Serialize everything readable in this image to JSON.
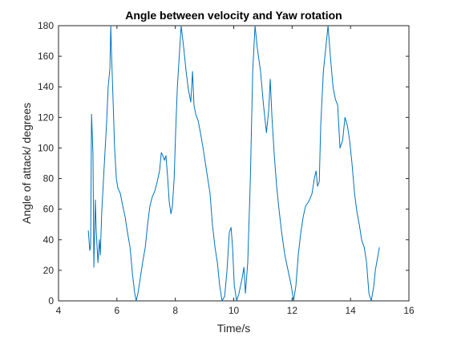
{
  "chart_data": {
    "type": "line",
    "title": "Angle between velocity and Yaw rotation",
    "x_label": "Time/s",
    "y_label": "Angle of attack/ degrees",
    "color": "#0072bd",
    "xlim": [
      4,
      16
    ],
    "ylim": [
      0,
      180
    ],
    "xticks": [
      4,
      6,
      8,
      10,
      12,
      14,
      16
    ],
    "yticks": [
      0,
      20,
      40,
      60,
      80,
      100,
      120,
      140,
      160,
      180
    ],
    "grid": false,
    "x": [
      5.02,
      5.07,
      5.1,
      5.13,
      5.18,
      5.21,
      5.26,
      5.29,
      5.35,
      5.4,
      5.43,
      5.48,
      5.57,
      5.65,
      5.7,
      5.76,
      5.79,
      5.81,
      5.87,
      5.92,
      5.98,
      6.03,
      6.12,
      6.2,
      6.28,
      6.36,
      6.45,
      6.53,
      6.61,
      6.66,
      6.72,
      6.8,
      6.88,
      6.97,
      7.05,
      7.13,
      7.21,
      7.3,
      7.38,
      7.46,
      7.52,
      7.57,
      7.63,
      7.68,
      7.74,
      7.79,
      7.85,
      7.9,
      7.96,
      8.01,
      8.07,
      8.15,
      8.2,
      8.29,
      8.37,
      8.45,
      8.53,
      8.59,
      8.64,
      8.7,
      8.78,
      8.86,
      8.95,
      9.03,
      9.11,
      9.19,
      9.27,
      9.36,
      9.44,
      9.52,
      9.6,
      9.69,
      9.77,
      9.85,
      9.91,
      9.96,
      10.02,
      10.1,
      10.18,
      10.29,
      10.35,
      10.4,
      10.48,
      10.57,
      10.65,
      10.73,
      10.81,
      10.92,
      11.01,
      11.12,
      11.2,
      11.25,
      11.31,
      11.39,
      11.47,
      11.55,
      11.64,
      11.75,
      11.86,
      11.97,
      12.05,
      12.13,
      12.21,
      12.3,
      12.38,
      12.46,
      12.57,
      12.68,
      12.76,
      12.82,
      12.87,
      12.93,
      12.98,
      13.07,
      13.15,
      13.23,
      13.31,
      13.4,
      13.48,
      13.56,
      13.64,
      13.73,
      13.81,
      13.89,
      13.97,
      14.05,
      14.14,
      14.22,
      14.3,
      14.38,
      14.47,
      14.55,
      14.63,
      14.71,
      14.8,
      14.85,
      14.99
    ],
    "values": [
      46,
      33,
      36,
      122,
      96,
      22,
      66,
      46,
      25,
      40,
      30,
      58,
      90,
      118,
      140,
      152,
      180,
      165,
      130,
      100,
      80,
      74,
      70,
      62,
      55,
      45,
      35,
      18,
      5,
      0,
      5,
      15,
      25,
      35,
      50,
      62,
      68,
      72,
      78,
      85,
      97,
      95,
      92,
      95,
      80,
      65,
      57,
      62,
      80,
      110,
      140,
      165,
      180,
      165,
      150,
      138,
      130,
      150,
      128,
      122,
      118,
      110,
      100,
      90,
      80,
      70,
      50,
      35,
      25,
      10,
      0,
      3,
      20,
      45,
      48,
      35,
      10,
      0,
      5,
      15,
      22,
      5,
      25,
      80,
      150,
      180,
      165,
      150,
      130,
      110,
      125,
      145,
      120,
      95,
      75,
      60,
      45,
      30,
      20,
      10,
      0,
      10,
      30,
      45,
      55,
      62,
      65,
      70,
      80,
      85,
      75,
      78,
      115,
      150,
      165,
      180,
      160,
      140,
      132,
      128,
      100,
      105,
      120,
      115,
      105,
      90,
      70,
      58,
      50,
      40,
      35,
      25,
      5,
      0,
      10,
      20,
      35
    ]
  }
}
